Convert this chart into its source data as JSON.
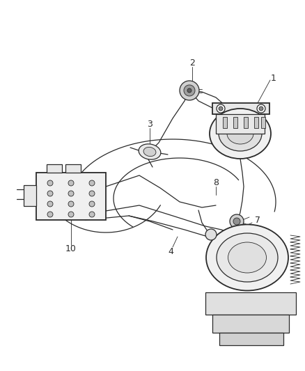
{
  "bg_color": "#ffffff",
  "line_color": "#2a2a2a",
  "label_color": "#2a2a2a",
  "figsize": [
    4.39,
    5.33
  ],
  "dpi": 100,
  "lw_main": 0.9,
  "lw_thick": 1.3,
  "lw_thin": 0.6
}
